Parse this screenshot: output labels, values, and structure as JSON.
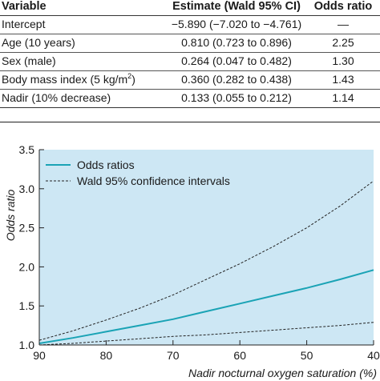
{
  "table": {
    "headers": [
      "Variable",
      "Estimate (Wald 95% CI)",
      "Odds ratio"
    ],
    "rows": [
      {
        "variable": "Intercept",
        "estimate": "−5.890 (−7.020 to −4.761)",
        "odds_ratio": "—"
      },
      {
        "variable": "Age (10 years)",
        "estimate": "0.810 (0.723 to 0.896)",
        "odds_ratio": "2.25"
      },
      {
        "variable": "Sex (male)",
        "estimate": "0.264 (0.047 to 0.482)",
        "odds_ratio": "1.30"
      },
      {
        "variable": "Body mass index (5 kg/m",
        "variable_sup": "2",
        "variable_tail": ")",
        "estimate": "0.360 (0.282 to 0.438)",
        "odds_ratio": "1.43"
      },
      {
        "variable": "Nadir (10% decrease)",
        "estimate": "0.133 (0.055 to 0.212)",
        "odds_ratio": "1.14"
      }
    ]
  },
  "chart_data": {
    "type": "line",
    "xlabel": "Nadir nocturnal oxygen saturation (%)",
    "ylabel": "Odds ratio",
    "x_ticks": [
      90,
      80,
      70,
      60,
      50,
      40
    ],
    "y_ticks": [
      "1.0",
      "1.5",
      "2.0",
      "2.5",
      "3.0",
      "3.5"
    ],
    "xlim": [
      90,
      40
    ],
    "ylim": [
      1.0,
      3.5
    ],
    "grid": false,
    "legend_position": "top-left",
    "colors": {
      "plot_bg": "#cde7f4",
      "odds_line": "#1aa3b5",
      "ci_line": "#222222"
    },
    "series": [
      {
        "name": "Odds ratios",
        "style": "solid",
        "x": [
          90,
          85,
          80,
          75,
          70,
          65,
          60,
          55,
          50,
          45,
          40
        ],
        "y": [
          1.02,
          1.09,
          1.17,
          1.25,
          1.33,
          1.43,
          1.53,
          1.63,
          1.73,
          1.84,
          1.96
        ]
      },
      {
        "name": "Wald 95% confidence intervals",
        "style": "dashed",
        "x": [
          90,
          85,
          80,
          75,
          70,
          65,
          60,
          55,
          50,
          45,
          40
        ],
        "y": [
          1.06,
          1.18,
          1.32,
          1.47,
          1.64,
          1.84,
          2.04,
          2.26,
          2.5,
          2.78,
          3.1
        ]
      },
      {
        "style": "dashed",
        "x": [
          90,
          85,
          80,
          75,
          70,
          65,
          60,
          55,
          50,
          45,
          40
        ],
        "y": [
          1.0,
          1.02,
          1.05,
          1.08,
          1.11,
          1.13,
          1.16,
          1.19,
          1.22,
          1.25,
          1.29
        ]
      }
    ]
  }
}
